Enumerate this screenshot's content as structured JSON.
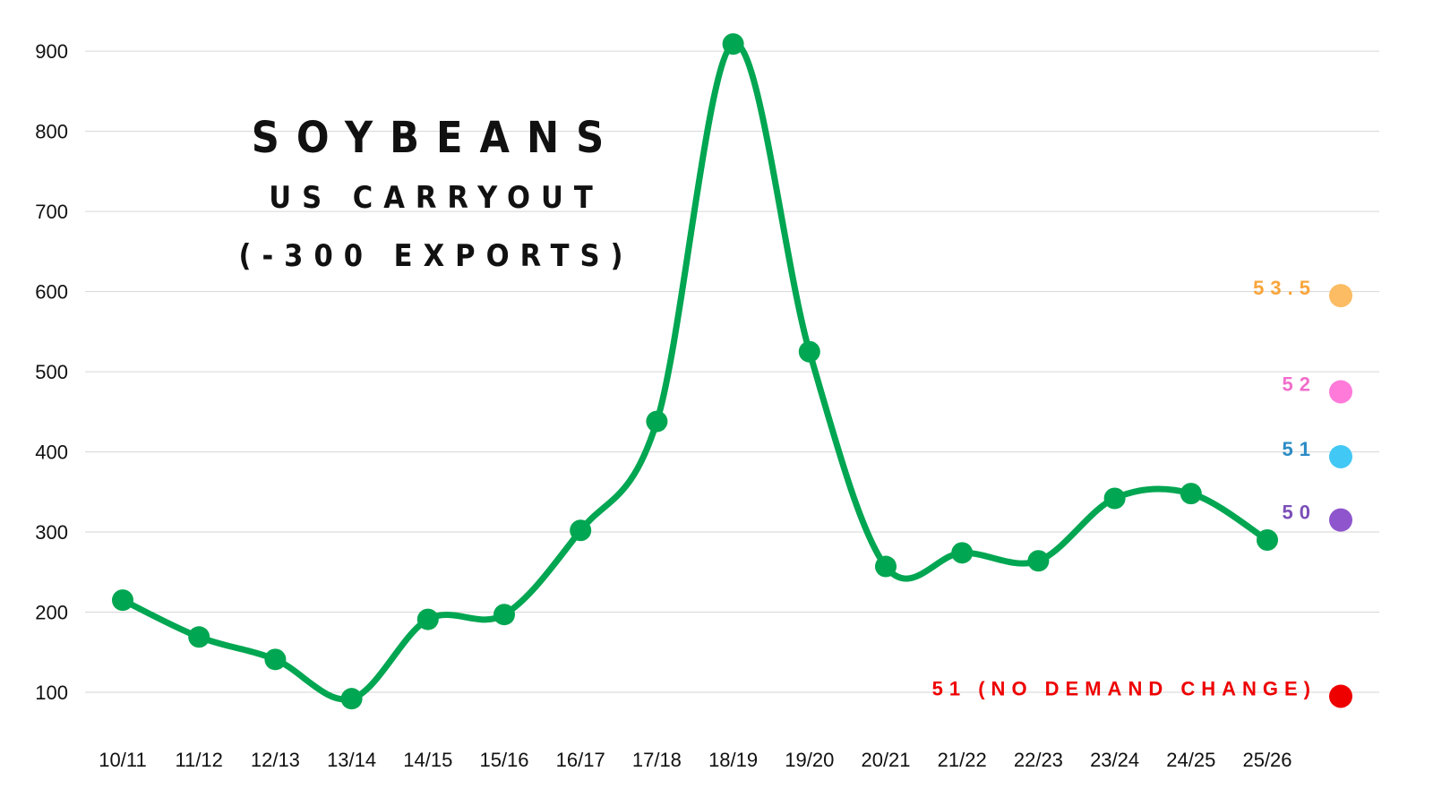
{
  "chart_data": {
    "type": "line",
    "title": "SOYBEANS",
    "subtitle_lines": [
      "US CARRYOUT",
      "(-300 EXPORTS)"
    ],
    "xlabel": "",
    "ylabel": "",
    "ylim": [
      0,
      950
    ],
    "yticks": [
      100,
      200,
      300,
      400,
      500,
      600,
      700,
      800,
      900
    ],
    "grid": true,
    "categories": [
      "10/11",
      "11/12",
      "12/13",
      "13/14",
      "14/15",
      "15/16",
      "16/17",
      "17/18",
      "18/19",
      "19/20",
      "20/21",
      "21/22",
      "22/23",
      "23/24",
      "24/25",
      "25/26"
    ],
    "series": [
      {
        "color": "#00a651",
        "values": [
          215,
          169,
          141,
          92,
          191,
          197,
          302,
          438,
          909,
          525,
          257,
          274,
          264,
          342,
          348,
          290
        ]
      }
    ],
    "scenarios": [
      {
        "label": "53.5",
        "value": 595,
        "color": "#fbbc63",
        "label_color": "#f9a53a"
      },
      {
        "label": "52",
        "value": 475,
        "color": "#ff7ad9",
        "label_color": "#f06ecb"
      },
      {
        "label": "51",
        "value": 394,
        "color": "#42c8f5",
        "label_color": "#2a8bc4"
      },
      {
        "label": "50",
        "value": 315,
        "color": "#8e55cc",
        "label_color": "#7b4fb8"
      },
      {
        "label": "51 (NO DEMAND CHANGE)",
        "value": 95,
        "color": "#ee0000",
        "label_color": "#ee0000"
      }
    ]
  }
}
